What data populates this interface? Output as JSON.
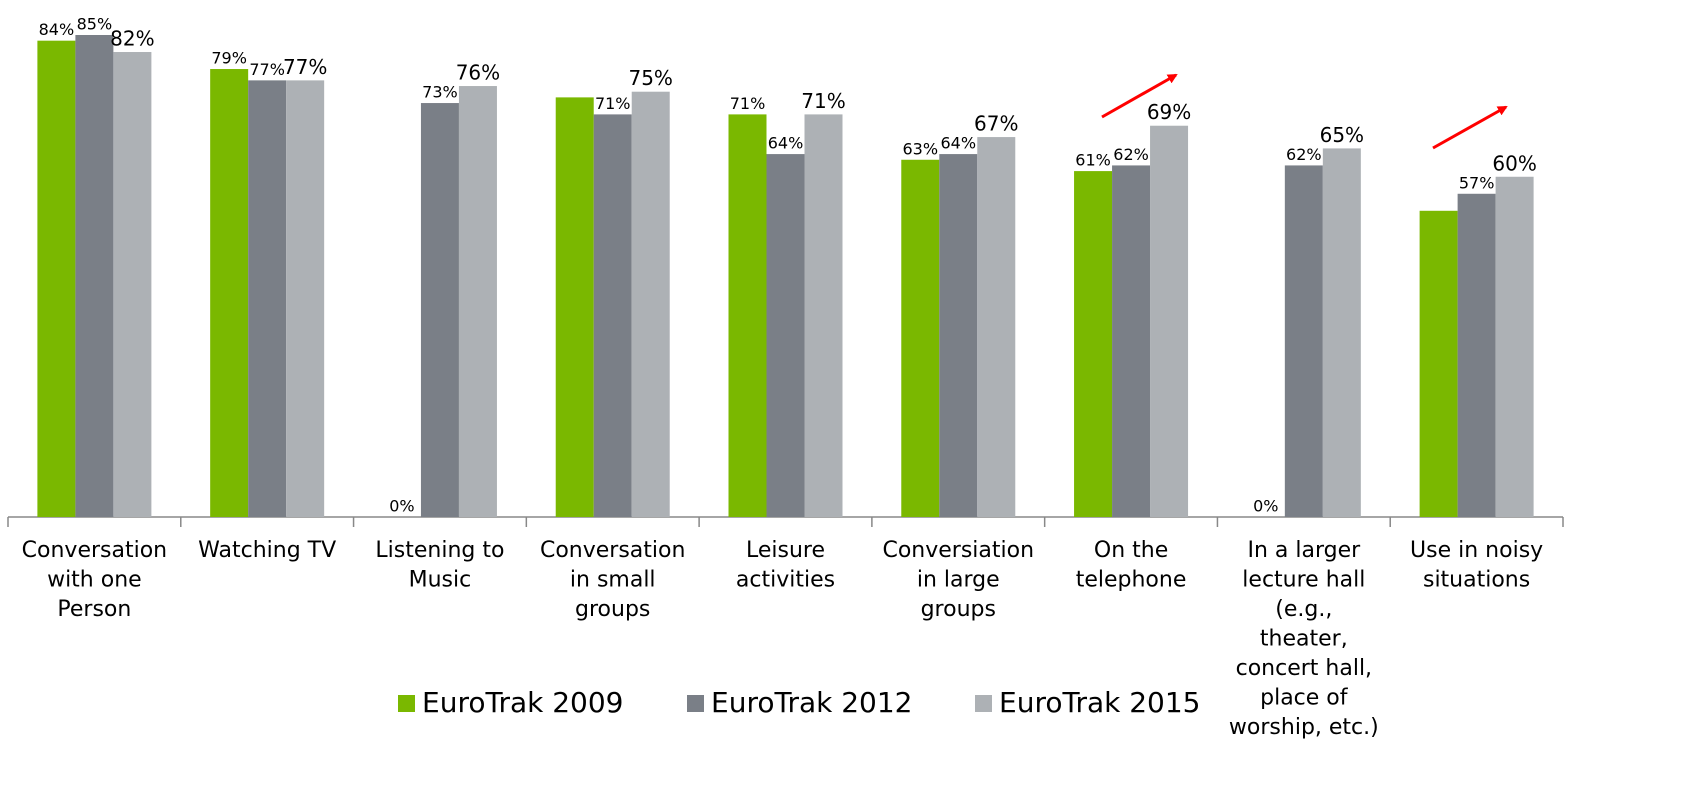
{
  "chart_data": {
    "type": "bar",
    "categories": [
      "Conversation\nwith one\nPerson",
      "Watching TV",
      "Listening to\nMusic",
      "Conversation\nin small\ngroups",
      "Leisure\nactivities",
      "Conversiation\nin large\ngroups",
      "On the\ntelephone",
      "In a larger\nlecture hall\n(e.g.,\ntheater,\nconcert hall,\nplace of\nworship, etc.)",
      "Use in noisy\nsituations"
    ],
    "series": [
      {
        "name": "EuroTrak 2009",
        "color": "#7ab800",
        "values": [
          84,
          79,
          0,
          74,
          71,
          63,
          61,
          0,
          54
        ],
        "value_labels": [
          "84%",
          "79%",
          "0%",
          null,
          "71%",
          "63%",
          "61%",
          "0%",
          null
        ]
      },
      {
        "name": "EuroTrak 2012",
        "color": "#7a7f87",
        "values": [
          85,
          77,
          73,
          71,
          64,
          64,
          62,
          62,
          57
        ],
        "value_labels": [
          "85%",
          "77%",
          "73%",
          "71%",
          "64%",
          "64%",
          "62%",
          "62%",
          "57%"
        ]
      },
      {
        "name": "EuroTrak 2015",
        "color": "#adb1b5",
        "values": [
          82,
          77,
          76,
          75,
          71,
          67,
          69,
          65,
          60
        ],
        "value_labels": [
          "82%",
          "77%",
          "76%",
          "75%",
          "71%",
          "67%",
          "69%",
          "65%",
          "60%"
        ]
      }
    ],
    "ylim": [
      0,
      85
    ],
    "legend": "bottom"
  }
}
